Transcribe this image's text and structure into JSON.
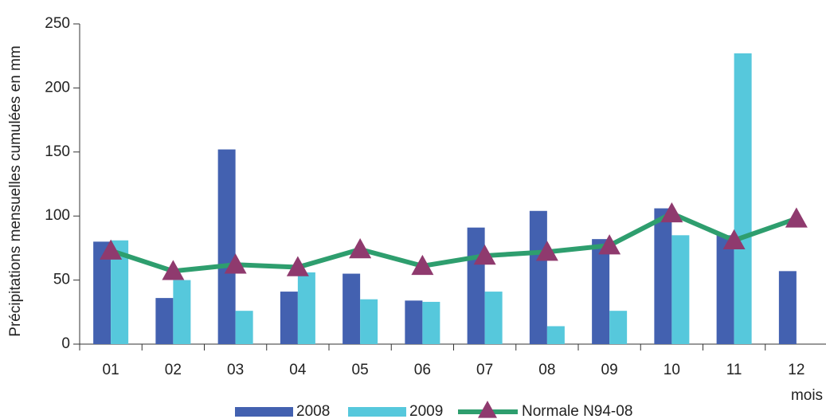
{
  "chart_data": {
    "type": "bar",
    "y_label": "Précipitations mensuelles cumulées en mm",
    "x_label": "mois",
    "categories": [
      "01",
      "02",
      "03",
      "04",
      "05",
      "06",
      "07",
      "08",
      "09",
      "10",
      "11",
      "12"
    ],
    "series": [
      {
        "name": "2008",
        "type": "bar",
        "color": "#4361b0",
        "values": [
          80,
          36,
          152,
          41,
          55,
          34,
          91,
          104,
          82,
          106,
          85,
          57
        ]
      },
      {
        "name": "2009",
        "type": "bar",
        "color": "#56c8dc",
        "values": [
          81,
          50,
          26,
          56,
          35,
          33,
          41,
          14,
          26,
          85,
          227,
          null
        ]
      },
      {
        "name": "Normale N94-08",
        "type": "line",
        "color": "#2e9e6e",
        "marker_color": "#8f3a6e",
        "values": [
          73,
          57,
          62,
          60,
          74,
          61,
          69,
          72,
          77,
          102,
          81,
          98
        ]
      }
    ],
    "ylim": [
      0,
      250
    ],
    "yticks": [
      0,
      50,
      100,
      150,
      200,
      250
    ]
  }
}
